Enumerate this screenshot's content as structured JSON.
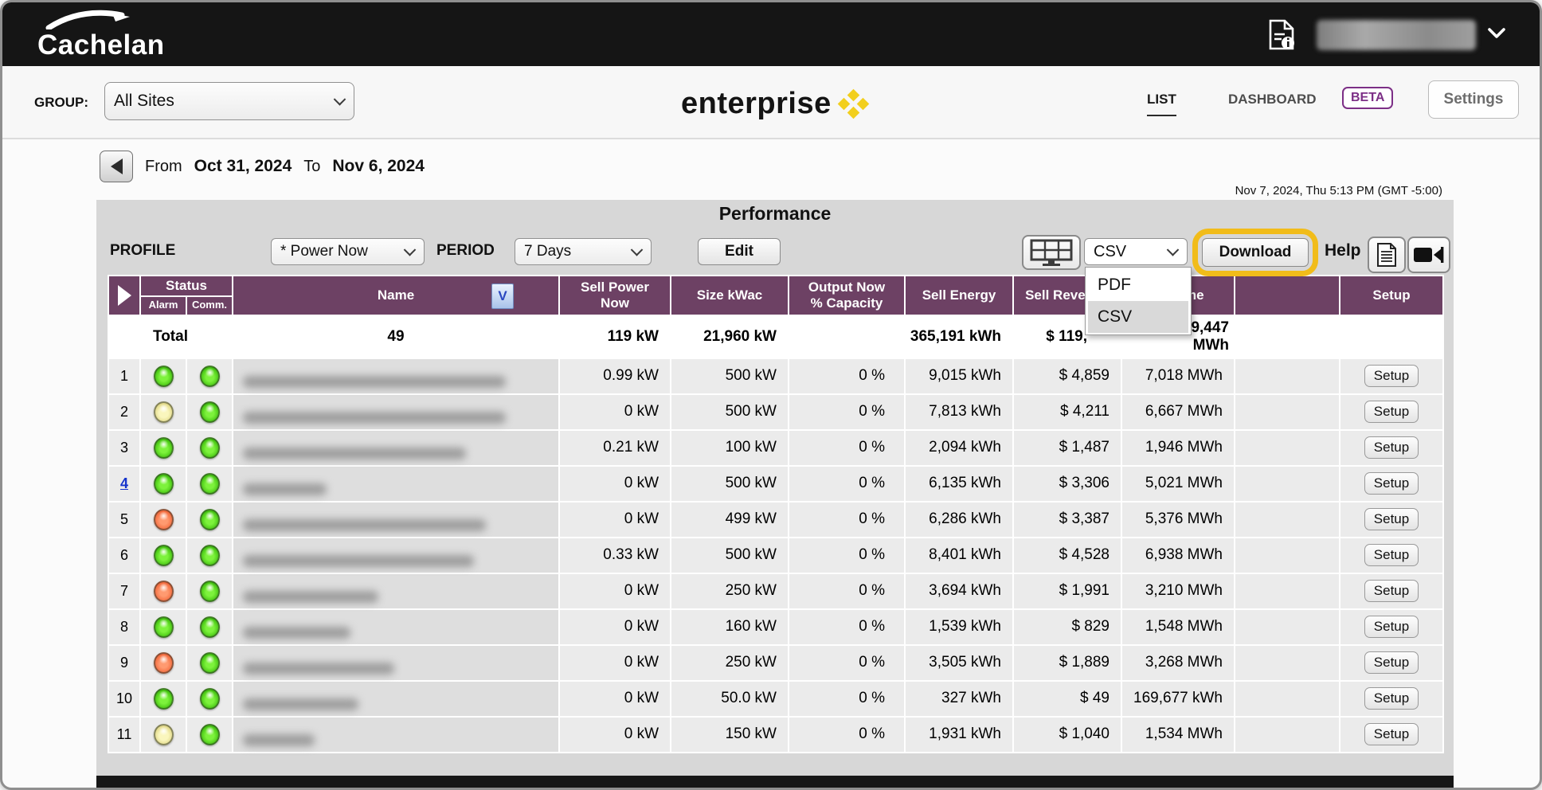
{
  "topbar": {
    "logo_text": "Cachelan"
  },
  "navbar": {
    "group_label": "GROUP:",
    "group_value": "All Sites",
    "brand": "enterprise",
    "list_tab": "LIST",
    "dashboard_tab": "DASHBOARD",
    "beta_badge": "BETA",
    "settings_button": "Settings"
  },
  "date_nav": {
    "from_label": "From",
    "from_date": "Oct 31, 2024",
    "to_label": "To",
    "to_date": "Nov 6, 2024"
  },
  "timestamp": "Nov 7, 2024, Thu 5:13 PM (GMT -5:00)",
  "panel": {
    "title": "Performance",
    "profile_label": "PROFILE",
    "profile_value": "* Power Now",
    "period_label": "PERIOD",
    "period_value": "7 Days",
    "edit_button": "Edit",
    "format_value": "CSV",
    "download_button": "Download",
    "help_label": "Help",
    "format_menu": {
      "items": [
        "PDF",
        "CSV"
      ],
      "selected": "CSV"
    }
  },
  "table": {
    "headers": {
      "status": "Status",
      "alarm": "Alarm",
      "comm": "Comm.",
      "name": "Name",
      "sell_power": "Sell Power\nNow",
      "size": "Size kWac",
      "output": "Output Now\n% Capacity",
      "sell_energy": "Sell Energy",
      "sell_revenue": "Sell Revenue",
      "lifetime": "Lifetime",
      "setup": "Setup"
    },
    "setup_label": "Setup",
    "total": {
      "label": "Total",
      "count": "49",
      "sell_power": "119 kW",
      "size": "21,960 kW",
      "output": "",
      "sell_energy": "365,191 kWh",
      "sell_revenue": "$ 119,",
      "lifetime": "9,447\nMWh"
    },
    "rows": [
      {
        "num": "1",
        "num_link": false,
        "alarm": "green",
        "comm": "green",
        "blur_w": 330,
        "sell_power": "0.99 kW",
        "size": "500 kW",
        "output": "0 %",
        "sell_energy": "9,015 kWh",
        "sell_rev": "$ 4,859",
        "lifetime": "7,018 MWh"
      },
      {
        "num": "2",
        "num_link": false,
        "alarm": "yellow",
        "comm": "green",
        "blur_w": 330,
        "sell_power": "0 kW",
        "size": "500 kW",
        "output": "0 %",
        "sell_energy": "7,813 kWh",
        "sell_rev": "$ 4,211",
        "lifetime": "6,667 MWh"
      },
      {
        "num": "3",
        "num_link": false,
        "alarm": "green",
        "comm": "green",
        "blur_w": 280,
        "sell_power": "0.21 kW",
        "size": "100 kW",
        "output": "0 %",
        "sell_energy": "2,094 kWh",
        "sell_rev": "$ 1,487",
        "lifetime": "1,946 MWh"
      },
      {
        "num": "4",
        "num_link": true,
        "alarm": "green",
        "comm": "green",
        "blur_w": 105,
        "sell_power": "0 kW",
        "size": "500 kW",
        "output": "0 %",
        "sell_energy": "6,135 kWh",
        "sell_rev": "$ 3,306",
        "lifetime": "5,021 MWh"
      },
      {
        "num": "5",
        "num_link": false,
        "alarm": "red",
        "comm": "green",
        "blur_w": 305,
        "sell_power": "0 kW",
        "size": "499 kW",
        "output": "0 %",
        "sell_energy": "6,286 kWh",
        "sell_rev": "$ 3,387",
        "lifetime": "5,376 MWh"
      },
      {
        "num": "6",
        "num_link": false,
        "alarm": "green",
        "comm": "green",
        "blur_w": 290,
        "sell_power": "0.33 kW",
        "size": "500 kW",
        "output": "0 %",
        "sell_energy": "8,401 kWh",
        "sell_rev": "$ 4,528",
        "lifetime": "6,938 MWh"
      },
      {
        "num": "7",
        "num_link": false,
        "alarm": "red",
        "comm": "green",
        "blur_w": 170,
        "sell_power": "0 kW",
        "size": "250 kW",
        "output": "0 %",
        "sell_energy": "3,694 kWh",
        "sell_rev": "$ 1,991",
        "lifetime": "3,210 MWh"
      },
      {
        "num": "8",
        "num_link": false,
        "alarm": "green",
        "comm": "green",
        "blur_w": 135,
        "sell_power": "0 kW",
        "size": "160 kW",
        "output": "0 %",
        "sell_energy": "1,539 kWh",
        "sell_rev": "$ 829",
        "lifetime": "1,548 MWh"
      },
      {
        "num": "9",
        "num_link": false,
        "alarm": "red",
        "comm": "green",
        "blur_w": 190,
        "sell_power": "0 kW",
        "size": "250 kW",
        "output": "0 %",
        "sell_energy": "3,505 kWh",
        "sell_rev": "$ 1,889",
        "lifetime": "3,268 MWh"
      },
      {
        "num": "10",
        "num_link": false,
        "alarm": "green",
        "comm": "green",
        "blur_w": 145,
        "sell_power": "0 kW",
        "size": "50.0 kW",
        "output": "0 %",
        "sell_energy": "327 kWh",
        "sell_rev": "$ 49",
        "lifetime": "169,677 kWh"
      },
      {
        "num": "11",
        "num_link": false,
        "alarm": "yellow",
        "comm": "green",
        "blur_w": 90,
        "sell_power": "0 kW",
        "size": "150 kW",
        "output": "0 %",
        "sell_energy": "1,931 kWh",
        "sell_rev": "$ 1,040",
        "lifetime": "1,534 MWh"
      }
    ]
  },
  "colors": {
    "header_purple": "#6d4164",
    "highlight_yellow": "#f1bc1a",
    "brand_yellow": "#f2cf1e",
    "beta_purple": "#7c2f86",
    "led_green": "#4fdd15",
    "led_yellow": "#f2eda6",
    "led_red": "#fb8a5e"
  }
}
